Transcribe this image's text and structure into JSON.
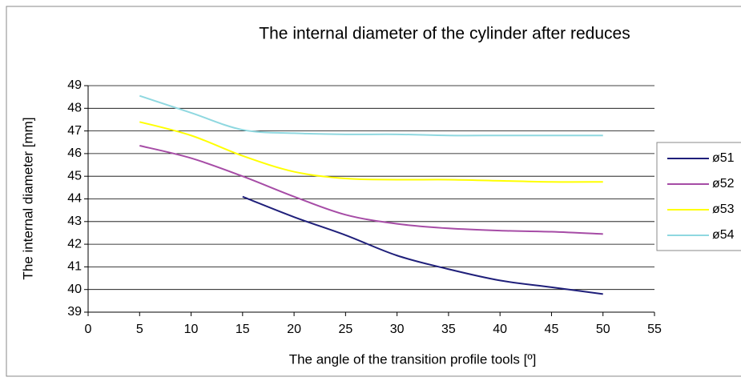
{
  "chart_data": {
    "type": "line",
    "title": "The internal diameter of the cylinder after reduces",
    "x_label": "The angle of the transition profile tools [º]",
    "y_label": "The internal diameter [mm]",
    "x": [
      5,
      10,
      15,
      20,
      25,
      30,
      35,
      40,
      45,
      50
    ],
    "series": [
      {
        "name": "ø51",
        "color": "#1f1f7a",
        "values": [
          null,
          null,
          44.1,
          43.2,
          42.4,
          41.5,
          40.9,
          40.4,
          40.1,
          39.8
        ]
      },
      {
        "name": "ø52",
        "color": "#a64ca6",
        "values": [
          46.35,
          45.8,
          45.0,
          44.1,
          43.3,
          42.9,
          42.7,
          42.6,
          42.55,
          42.45
        ]
      },
      {
        "name": "ø53",
        "color": "#ffff00",
        "values": [
          47.4,
          46.8,
          45.9,
          45.2,
          44.9,
          44.85,
          44.85,
          44.8,
          44.75,
          44.75
        ]
      },
      {
        "name": "ø54",
        "color": "#8fd8e0",
        "values": [
          48.55,
          47.8,
          47.05,
          46.9,
          46.85,
          46.85,
          46.8,
          46.8,
          46.8,
          46.8
        ]
      }
    ],
    "xlim": [
      0,
      55
    ],
    "xticks": [
      0,
      5,
      10,
      15,
      20,
      25,
      30,
      35,
      40,
      45,
      50,
      55
    ],
    "ylim": [
      39,
      49
    ],
    "yticks": [
      39,
      40,
      41,
      42,
      43,
      44,
      45,
      46,
      47,
      48,
      49
    ],
    "grid": true,
    "legend": "right"
  }
}
